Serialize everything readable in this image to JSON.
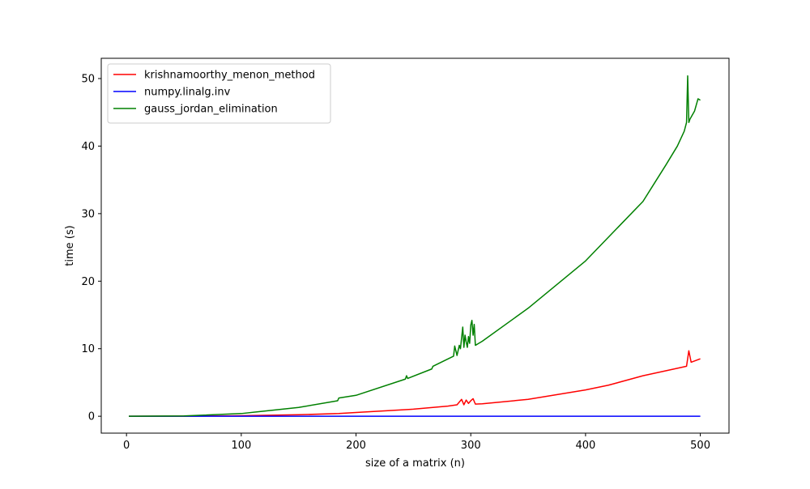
{
  "chart_data": {
    "type": "line",
    "xlabel": "size of a matrix (n)",
    "ylabel": "time (s)",
    "xlim": [
      -22,
      525
    ],
    "ylim": [
      -2.5,
      53
    ],
    "xticks": [
      0,
      100,
      200,
      300,
      400,
      500
    ],
    "yticks": [
      0,
      10,
      20,
      30,
      40,
      50
    ],
    "grid": false,
    "legend_position": "top-left",
    "series": [
      {
        "name": "krishnamoorthy_menon_method",
        "color": "#ff0000",
        "x": [
          2,
          50,
          100,
          150,
          185,
          200,
          250,
          280,
          288,
          292,
          294,
          296,
          298,
          300,
          302,
          304,
          310,
          350,
          400,
          420,
          450,
          480,
          488,
          490,
          492,
          500
        ],
        "y": [
          0,
          0.02,
          0.07,
          0.22,
          0.4,
          0.55,
          1.05,
          1.5,
          1.7,
          2.5,
          1.7,
          2.4,
          1.9,
          2.3,
          2.6,
          1.8,
          1.85,
          2.5,
          3.9,
          4.6,
          6.0,
          7.1,
          7.4,
          9.7,
          8.0,
          8.5
        ]
      },
      {
        "name": "numpy.linalg.inv",
        "color": "#0000ff",
        "x": [
          2,
          100,
          200,
          300,
          400,
          500
        ],
        "y": [
          0,
          0,
          0,
          0,
          0,
          0
        ]
      },
      {
        "name": "gauss_jordan_elimination",
        "color": "#008000",
        "x": [
          2,
          50,
          100,
          150,
          184,
          185,
          200,
          243,
          244,
          245,
          266,
          267,
          285,
          286,
          288,
          290,
          291,
          293,
          294,
          295,
          296,
          297,
          298,
          299,
          300,
          301,
          302,
          303,
          304,
          306,
          310,
          350,
          400,
          450,
          460,
          470,
          480,
          486,
          488,
          489,
          490,
          491,
          492,
          495,
          498,
          500
        ],
        "y": [
          0,
          0.05,
          0.4,
          1.3,
          2.3,
          2.7,
          3.1,
          5.5,
          6.0,
          5.6,
          7.0,
          7.4,
          8.9,
          10.4,
          9.0,
          10.5,
          10.0,
          13.2,
          10.2,
          12.0,
          11.0,
          10.2,
          11.8,
          10.8,
          13.5,
          14.2,
          12.0,
          13.6,
          10.5,
          10.7,
          11.1,
          16.0,
          23.0,
          31.8,
          34.5,
          37.2,
          40.0,
          42.2,
          43.5,
          50.4,
          43.5,
          44.0,
          44.3,
          45.2,
          47.0,
          46.8
        ]
      }
    ]
  }
}
